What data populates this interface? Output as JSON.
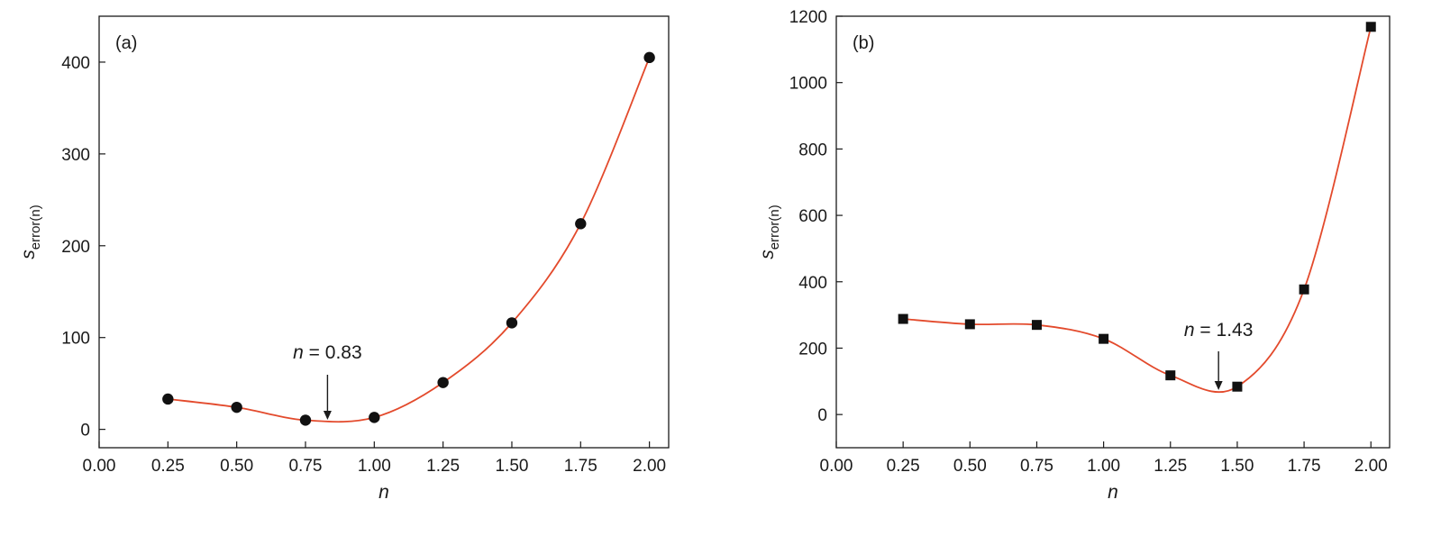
{
  "chart_data": [
    {
      "type": "scatter",
      "panel_label": "(a)",
      "xlabel": "n",
      "ylabel_main": "s",
      "ylabel_sub": "error(n)",
      "xlim": [
        0.0,
        2.07
      ],
      "ylim": [
        -20,
        450
      ],
      "xticks": [
        "0.00",
        "0.25",
        "0.50",
        "0.75",
        "1.00",
        "1.25",
        "1.50",
        "1.75",
        "2.00"
      ],
      "yticks": [
        "0",
        "100",
        "200",
        "300",
        "400"
      ],
      "marker": "circle",
      "series": [
        {
          "x": [
            0.25,
            0.5,
            0.75,
            1.0,
            1.25,
            1.5,
            1.75,
            2.0
          ],
          "y": [
            33,
            24,
            10,
            13,
            51,
            116,
            224,
            405
          ]
        }
      ],
      "curve_color": "#e34a2c",
      "annotation": {
        "italic": "n",
        "text": " = 0.83",
        "x": 0.83
      },
      "grid": false
    },
    {
      "type": "scatter",
      "panel_label": "(b)",
      "xlabel": "n",
      "ylabel_main": "s",
      "ylabel_sub": "error(n)",
      "xlim": [
        0.0,
        2.07
      ],
      "ylim": [
        -100,
        1200
      ],
      "xticks": [
        "0.00",
        "0.25",
        "0.50",
        "0.75",
        "1.00",
        "1.25",
        "1.50",
        "1.75",
        "2.00"
      ],
      "yticks": [
        "0",
        "200",
        "400",
        "600",
        "800",
        "1000",
        "1200"
      ],
      "marker": "square",
      "series": [
        {
          "x": [
            0.25,
            0.5,
            0.75,
            1.0,
            1.25,
            1.5,
            1.75,
            2.0
          ],
          "y": [
            288,
            272,
            270,
            228,
            118,
            84,
            377,
            1168
          ]
        }
      ],
      "curve_color": "#e34a2c",
      "annotation": {
        "italic": "n",
        "text": " = 1.43",
        "x": 1.43
      },
      "grid": false
    }
  ]
}
